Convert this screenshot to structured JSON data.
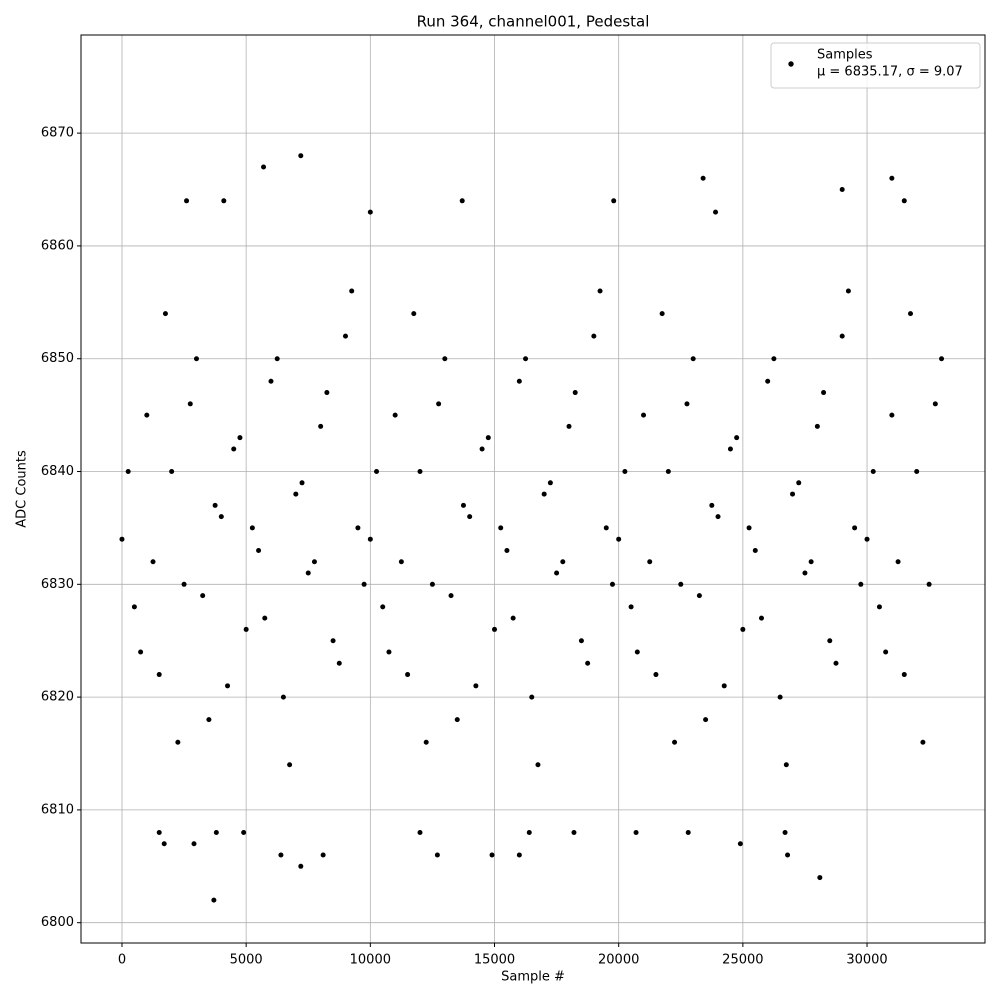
{
  "chart_data": {
    "type": "scatter",
    "title": "Run 364, channel001, Pedestal",
    "x_label": "Sample #",
    "y_label": "ADC Counts",
    "xlim": [
      -1650,
      34750
    ],
    "ylim": [
      6798.2,
      6878.7
    ],
    "xticks": [
      0,
      5000,
      10000,
      15000,
      20000,
      25000,
      30000
    ],
    "yticks": [
      6800,
      6810,
      6820,
      6830,
      6840,
      6850,
      6860,
      6870
    ],
    "grid": true,
    "legend": "upper right",
    "series": [
      {
        "name": "Samples",
        "stats_label": "μ = 6835.17, σ = 9.07",
        "color": "#000000",
        "x": [
          0,
          500,
          1000,
          1500,
          2000,
          2500,
          3000,
          3500,
          4000,
          4500,
          5000,
          5500,
          6000,
          6500,
          7000,
          7500,
          8000,
          8500,
          9000,
          9500,
          10000,
          10500,
          11000,
          11500,
          12000,
          12500,
          13000,
          13500,
          14000,
          14500,
          15000,
          15500,
          16000,
          16500,
          17000,
          17500,
          18000,
          18500,
          19000,
          19500,
          20000,
          20500,
          21000,
          21500,
          22000,
          22500,
          23000,
          23500,
          24000,
          24500,
          25000,
          25500,
          26000,
          26500,
          27000,
          27500,
          28000,
          28500,
          29000,
          29500,
          30000,
          30500,
          31000,
          31500,
          32000,
          32500,
          33000,
          250,
          750,
          1250,
          1750,
          2250,
          2750,
          3250,
          3750,
          4250,
          4750,
          5250,
          5750,
          6250,
          6750,
          7250,
          7750,
          8250,
          8750,
          9250,
          9750,
          10250,
          10750,
          11250,
          11750,
          12250,
          12750,
          13250,
          13750,
          14250,
          14750,
          15250,
          15750,
          16250,
          16750,
          17250,
          17750,
          18250,
          18750,
          19250,
          19750,
          20250,
          20750,
          21250,
          21750,
          22250,
          22750,
          23250,
          23750,
          24250,
          24750,
          25250,
          25750,
          26250,
          26750,
          27250,
          27750,
          28250,
          28750,
          29250,
          29750,
          30250,
          30750,
          31250,
          31750,
          32250,
          32750,
          3700,
          7200,
          28100,
          5700,
          7200,
          23400,
          31000,
          29000,
          2600,
          4100,
          13700,
          31500,
          19800,
          23900,
          10000,
          6400,
          8100,
          12700,
          14900,
          16000,
          26800,
          24900,
          1700,
          2900,
          1500,
          3800,
          4900,
          12000,
          16400,
          18200,
          20700,
          22800,
          26700
        ],
        "values": [
          6834,
          6828,
          6845,
          6822,
          6840,
          6830,
          6850,
          6818,
          6836,
          6842,
          6826,
          6833,
          6848,
          6820,
          6838,
          6831,
          6844,
          6825,
          6852,
          6835,
          6834,
          6828,
          6845,
          6822,
          6840,
          6830,
          6850,
          6818,
          6836,
          6842,
          6826,
          6833,
          6848,
          6820,
          6838,
          6831,
          6844,
          6825,
          6852,
          6835,
          6834,
          6828,
          6845,
          6822,
          6840,
          6830,
          6850,
          6818,
          6836,
          6842,
          6826,
          6833,
          6848,
          6820,
          6838,
          6831,
          6844,
          6825,
          6852,
          6835,
          6834,
          6828,
          6845,
          6822,
          6840,
          6830,
          6850,
          6840,
          6824,
          6832,
          6854,
          6816,
          6846,
          6829,
          6837,
          6821,
          6843,
          6835,
          6827,
          6850,
          6814,
          6839,
          6832,
          6847,
          6823,
          6856,
          6830,
          6840,
          6824,
          6832,
          6854,
          6816,
          6846,
          6829,
          6837,
          6821,
          6843,
          6835,
          6827,
          6850,
          6814,
          6839,
          6832,
          6847,
          6823,
          6856,
          6830,
          6840,
          6824,
          6832,
          6854,
          6816,
          6846,
          6829,
          6837,
          6821,
          6843,
          6835,
          6827,
          6850,
          6814,
          6839,
          6832,
          6847,
          6823,
          6856,
          6830,
          6840,
          6824,
          6832,
          6854,
          6816,
          6846,
          6802,
          6805,
          6804,
          6867,
          6868,
          6866,
          6866,
          6865,
          6864,
          6864,
          6864,
          6864,
          6864,
          6863,
          6863,
          6806,
          6806,
          6806,
          6806,
          6806,
          6806,
          6807,
          6807,
          6807,
          6808,
          6808,
          6808,
          6808,
          6808,
          6808,
          6808,
          6808,
          6808
        ]
      }
    ]
  }
}
